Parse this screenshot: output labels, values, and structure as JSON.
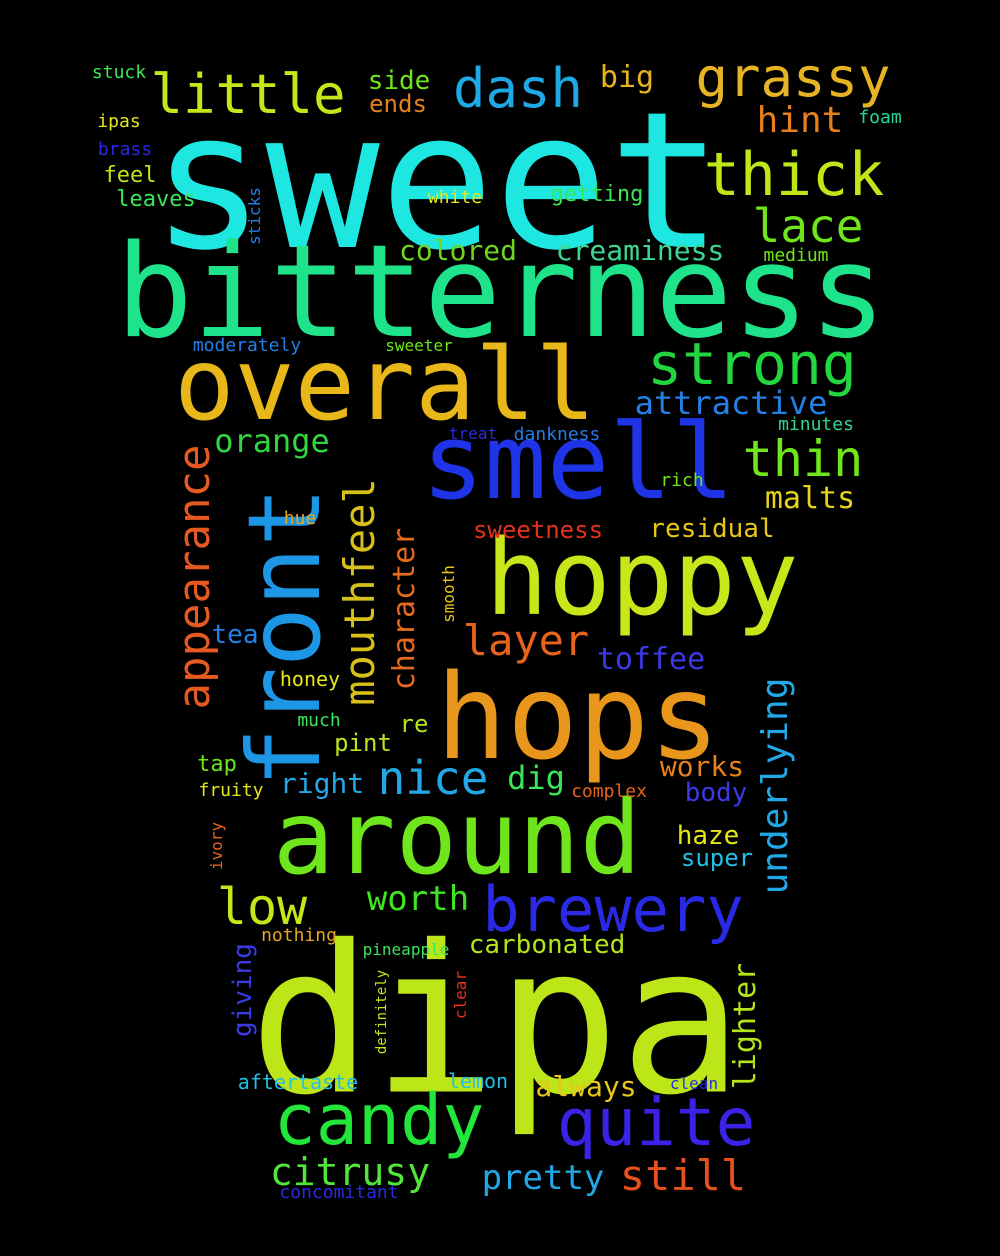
{
  "words": [
    {
      "text": "sweet",
      "color": "#1ee6e0"
    },
    {
      "text": "bitterness",
      "color": "#1fe38a"
    },
    {
      "text": "dipa",
      "color": "#bde619"
    },
    {
      "text": "overall",
      "color": "#e8b719"
    },
    {
      "text": "smell",
      "color": "#1e34e6"
    },
    {
      "text": "hoppy",
      "color": "#c8e619"
    },
    {
      "text": "hops",
      "color": "#e8961c"
    },
    {
      "text": "around",
      "color": "#6fe61c"
    },
    {
      "text": "front",
      "color": "#1e96e6"
    },
    {
      "text": "candy",
      "color": "#22e63a"
    },
    {
      "text": "brewery",
      "color": "#2a2ae6"
    },
    {
      "text": "quite",
      "color": "#3a22e6"
    },
    {
      "text": "strong",
      "color": "#22d640"
    },
    {
      "text": "thick",
      "color": "#bfe619"
    },
    {
      "text": "grassy",
      "color": "#e6b422"
    },
    {
      "text": "little",
      "color": "#c6e619"
    },
    {
      "text": "dash",
      "color": "#1ea8e6"
    },
    {
      "text": "appearance",
      "color": "#e65a22"
    },
    {
      "text": "mouthfeel",
      "color": "#d6c019"
    },
    {
      "text": "thin",
      "color": "#6ee619"
    },
    {
      "text": "lace",
      "color": "#6ee619"
    },
    {
      "text": "low",
      "color": "#c6e619"
    },
    {
      "text": "nice",
      "color": "#22a8e6"
    },
    {
      "text": "layer",
      "color": "#e6641c"
    },
    {
      "text": "citrusy",
      "color": "#52e63a"
    },
    {
      "text": "still",
      "color": "#e6501c"
    },
    {
      "text": "underlying",
      "color": "#22a8e6"
    },
    {
      "text": "character",
      "color": "#e66a1c"
    },
    {
      "text": "attractive",
      "color": "#2280e6"
    },
    {
      "text": "orange",
      "color": "#32d640"
    },
    {
      "text": "pretty",
      "color": "#22a8e6"
    },
    {
      "text": "worth",
      "color": "#3ee622"
    },
    {
      "text": "lighter",
      "color": "#b2e619"
    },
    {
      "text": "toffee",
      "color": "#3a3ae6"
    },
    {
      "text": "malts",
      "color": "#e6d419"
    },
    {
      "text": "hint",
      "color": "#e6801c"
    },
    {
      "text": "creaminess",
      "color": "#3ed690"
    },
    {
      "text": "big",
      "color": "#e6b422"
    },
    {
      "text": "colored",
      "color": "#6ed61c"
    },
    {
      "text": "residual",
      "color": "#e6c619"
    },
    {
      "text": "right",
      "color": "#22a8e6"
    },
    {
      "text": "dig",
      "color": "#3ae65a"
    },
    {
      "text": "works",
      "color": "#e6801c"
    },
    {
      "text": "always",
      "color": "#e6c619"
    },
    {
      "text": "carbonated",
      "color": "#b2e619"
    },
    {
      "text": "haze",
      "color": "#e6e619"
    },
    {
      "text": "body",
      "color": "#3a3ae6"
    },
    {
      "text": "super",
      "color": "#22c0e6"
    },
    {
      "text": "giving",
      "color": "#3a3ae6"
    },
    {
      "text": "side",
      "color": "#6ee619"
    },
    {
      "text": "ends",
      "color": "#e6801c"
    },
    {
      "text": "tea",
      "color": "#2280e6"
    },
    {
      "text": "pint",
      "color": "#bde619"
    },
    {
      "text": "re",
      "color": "#b2e619"
    },
    {
      "text": "sweetness",
      "color": "#e6321c"
    },
    {
      "text": "getting",
      "color": "#3ae65a"
    },
    {
      "text": "feel",
      "color": "#bde619"
    },
    {
      "text": "leaves",
      "color": "#3ae65a"
    },
    {
      "text": "honey",
      "color": "#e6e619"
    },
    {
      "text": "tap",
      "color": "#6ee619"
    },
    {
      "text": "aftertaste",
      "color": "#22c0e6"
    },
    {
      "text": "lemon",
      "color": "#22c0e6"
    },
    {
      "text": "concomitant",
      "color": "#2a2ae6"
    },
    {
      "text": "stuck",
      "color": "#3ae65a"
    },
    {
      "text": "ipas",
      "color": "#e6e619"
    },
    {
      "text": "brass",
      "color": "#2a2ae6"
    },
    {
      "text": "white",
      "color": "#e6e619"
    },
    {
      "text": "sticks",
      "color": "#2280e6"
    },
    {
      "text": "medium",
      "color": "#6ee619"
    },
    {
      "text": "foam",
      "color": "#22d6a0"
    },
    {
      "text": "moderately",
      "color": "#2280e6"
    },
    {
      "text": "sweeter",
      "color": "#6ee619"
    },
    {
      "text": "treat",
      "color": "#2a2ae6"
    },
    {
      "text": "dankness",
      "color": "#2a7ae6"
    },
    {
      "text": "minutes",
      "color": "#32d690"
    },
    {
      "text": "rich",
      "color": "#6ee619"
    },
    {
      "text": "hue",
      "color": "#e6a81c"
    },
    {
      "text": "smooth",
      "color": "#e6c619"
    },
    {
      "text": "much",
      "color": "#3ae65a"
    },
    {
      "text": "fruity",
      "color": "#e6e619"
    },
    {
      "text": "complex",
      "color": "#e6641c"
    },
    {
      "text": "ivory",
      "color": "#e6641c"
    },
    {
      "text": "nothing",
      "color": "#e6a81c"
    },
    {
      "text": "pineapple",
      "color": "#3ae65a"
    },
    {
      "text": "definitely",
      "color": "#c6e619"
    },
    {
      "text": "clear",
      "color": "#e6321c"
    },
    {
      "text": "clean",
      "color": "#2a2ae6"
    }
  ]
}
